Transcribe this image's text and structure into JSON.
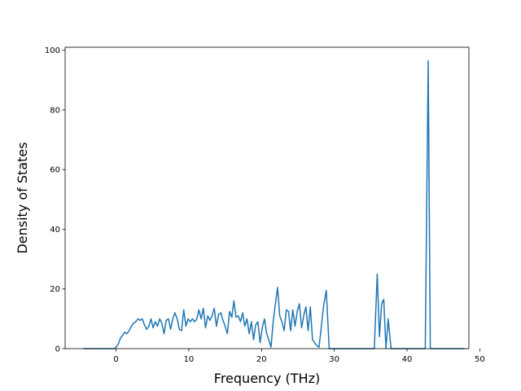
{
  "chart_data": {
    "type": "line",
    "title": "",
    "xlabel": "Frequency (THz)",
    "ylabel": "Density of States",
    "xlim": [
      -7,
      48.5
    ],
    "ylim": [
      0,
      101
    ],
    "xticks": [
      0,
      10,
      20,
      30,
      40,
      50
    ],
    "yticks": [
      0,
      20,
      40,
      60,
      80,
      100
    ],
    "grid": false,
    "legend": "none",
    "series": [
      {
        "color": "#1f77b4",
        "x": [
          -4.5,
          -0.3,
          0.0,
          0.3,
          0.6,
          0.9,
          1.2,
          1.5,
          1.8,
          2.1,
          2.4,
          2.7,
          3.0,
          3.3,
          3.6,
          3.9,
          4.2,
          4.5,
          4.8,
          5.1,
          5.4,
          5.7,
          6.0,
          6.3,
          6.6,
          6.9,
          7.2,
          7.5,
          7.8,
          8.1,
          8.4,
          8.7,
          9.0,
          9.3,
          9.6,
          9.9,
          10.2,
          10.5,
          10.8,
          11.1,
          11.4,
          11.7,
          12.0,
          12.3,
          12.6,
          12.9,
          13.2,
          13.5,
          13.8,
          14.1,
          14.4,
          14.7,
          15.0,
          15.3,
          15.6,
          15.9,
          16.2,
          16.5,
          16.8,
          17.1,
          17.4,
          17.7,
          18.0,
          18.3,
          18.6,
          18.9,
          19.2,
          19.5,
          19.8,
          20.1,
          20.4,
          20.7,
          21.0,
          21.3,
          21.6,
          21.9,
          22.2,
          22.5,
          22.8,
          23.1,
          23.4,
          23.7,
          24.0,
          24.3,
          24.6,
          24.9,
          25.2,
          25.5,
          25.8,
          26.1,
          26.4,
          26.7,
          27.0,
          27.3,
          27.6,
          27.9,
          28.2,
          28.5,
          28.9,
          29.3,
          29.6,
          35.5,
          35.9,
          36.2,
          36.5,
          36.8,
          37.1,
          37.4,
          37.8,
          42.1,
          42.5,
          42.9,
          43.2,
          47.9
        ],
        "y": [
          0,
          0,
          0.5,
          1.5,
          3.5,
          4.5,
          5.5,
          5,
          6,
          7.5,
          8.5,
          9,
          10,
          9.5,
          10,
          8,
          6.5,
          7.5,
          10,
          7,
          9,
          7.5,
          10,
          8.5,
          5,
          9.5,
          10,
          6.5,
          10,
          12,
          10,
          6.5,
          6,
          13,
          7.5,
          10,
          9,
          10,
          9,
          10,
          13,
          10,
          13.5,
          7,
          11,
          9.5,
          11,
          13.5,
          7.5,
          11.5,
          12,
          9.5,
          7.5,
          5,
          12.5,
          10.5,
          16,
          10.5,
          11,
          9,
          12,
          7.5,
          10,
          5,
          9,
          3,
          8,
          9,
          2,
          7,
          10,
          5,
          3,
          0.5,
          9,
          15,
          20.5,
          11,
          9,
          6,
          13,
          12.5,
          6,
          13,
          7.5,
          12.5,
          15,
          7,
          11,
          14,
          6,
          14,
          3,
          2,
          1,
          0.5,
          7,
          14,
          19.5,
          0,
          0,
          0,
          25,
          4,
          15,
          16.5,
          0,
          10,
          0,
          0,
          0,
          96.5,
          0,
          0
        ]
      }
    ]
  }
}
